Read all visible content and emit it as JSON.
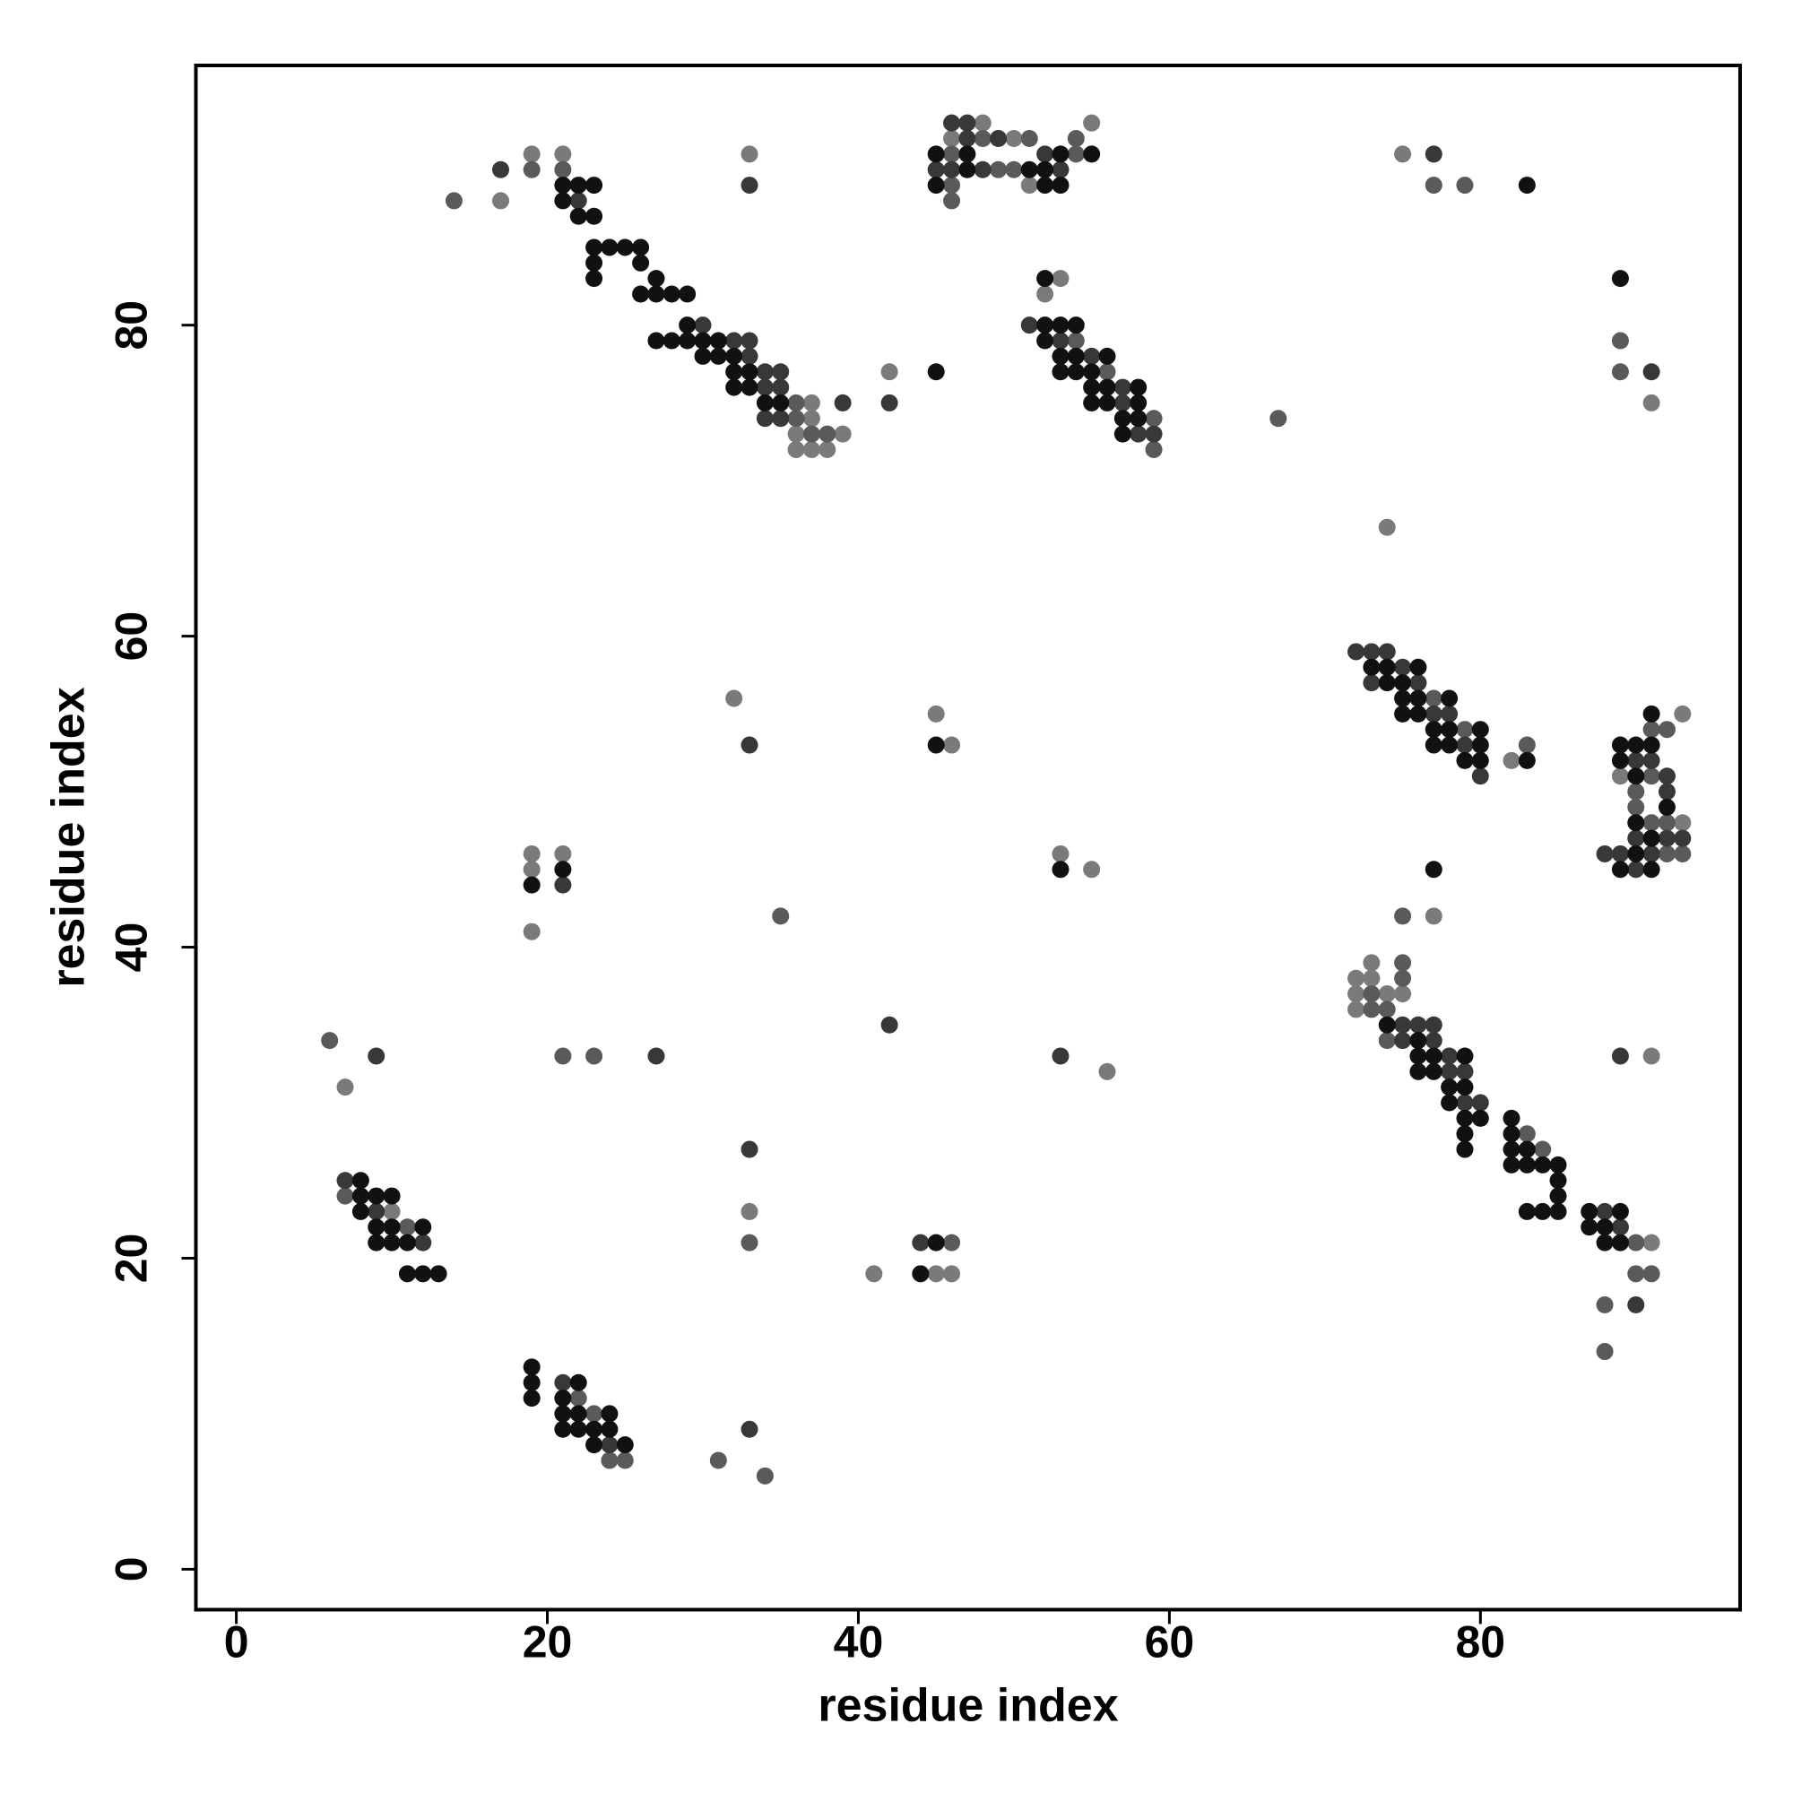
{
  "chart_data": {
    "type": "scatter",
    "xlabel": "residue index",
    "ylabel": "residue index",
    "xlim": [
      -2.6,
      96.7
    ],
    "ylim": [
      -2.6,
      96.7
    ],
    "xticks": [
      0,
      20,
      40,
      60,
      80
    ],
    "yticks": [
      0,
      20,
      40,
      60,
      80
    ],
    "series": [
      {
        "color": "#7a7a7a",
        "x": [
          17,
          19,
          21,
          36,
          36,
          37,
          37,
          37,
          38,
          39,
          33,
          42,
          46,
          48,
          50,
          51,
          55,
          52,
          53,
          75,
          91,
          74,
          82,
          89,
          93,
          93,
          32,
          45,
          46,
          19,
          19,
          21,
          19,
          53,
          55,
          77,
          72,
          72,
          72,
          73,
          73,
          74,
          75,
          91,
          91,
          7,
          56,
          10,
          33,
          45,
          46,
          41
        ],
        "values": [
          88,
          91,
          91,
          73,
          72,
          75,
          74,
          72,
          72,
          73,
          91,
          77,
          92,
          93,
          92,
          89,
          93,
          82,
          83,
          91,
          75,
          67,
          52,
          51,
          55,
          48,
          56,
          55,
          53,
          46,
          45,
          46,
          41,
          46,
          45,
          42,
          38,
          37,
          36,
          39,
          38,
          37,
          37,
          21,
          33,
          31,
          32,
          23,
          23,
          19,
          19,
          19
        ]
      },
      {
        "color": "#5a5a5a",
        "x": [
          14,
          19,
          21,
          36,
          36,
          37,
          38,
          46,
          46,
          46,
          48,
          49,
          50,
          51,
          54,
          54,
          54,
          56,
          59,
          59,
          67,
          77,
          79,
          89,
          89,
          77,
          79,
          83,
          90,
          90,
          91,
          91,
          91,
          92,
          92,
          92,
          93,
          35,
          75,
          73,
          73,
          74,
          74,
          75,
          75,
          83,
          84,
          90,
          90,
          91,
          88,
          88,
          6,
          21,
          23,
          7,
          11,
          33,
          46,
          22,
          23,
          24,
          25,
          31,
          34
        ],
        "values": [
          88,
          90,
          90,
          75,
          74,
          73,
          73,
          91,
          89,
          88,
          92,
          90,
          90,
          92,
          92,
          91,
          79,
          77,
          74,
          72,
          74,
          89,
          89,
          79,
          77,
          56,
          54,
          53,
          50,
          49,
          54,
          51,
          48,
          54,
          48,
          46,
          46,
          42,
          42,
          37,
          36,
          36,
          34,
          39,
          38,
          28,
          27,
          21,
          19,
          19,
          17,
          14,
          34,
          33,
          33,
          24,
          22,
          21,
          21,
          11,
          10,
          7,
          7,
          7,
          6
        ]
      },
      {
        "color": "#383838",
        "x": [
          17,
          22,
          30,
          32,
          33,
          33,
          34,
          34,
          34,
          35,
          35,
          35,
          39,
          33,
          42,
          45,
          46,
          46,
          47,
          47,
          48,
          49,
          52,
          53,
          51,
          53,
          55,
          57,
          57,
          58,
          59,
          77,
          91,
          72,
          73,
          73,
          74,
          75,
          76,
          77,
          78,
          79,
          80,
          88,
          89,
          90,
          90,
          90,
          91,
          91,
          92,
          92,
          92,
          93,
          33,
          21,
          75,
          75,
          76,
          77,
          77,
          78,
          78,
          79,
          79,
          80,
          88,
          89,
          90,
          89,
          9,
          27,
          42,
          53,
          7,
          9,
          12,
          33,
          44,
          21,
          24,
          33
        ],
        "values": [
          90,
          88,
          80,
          79,
          79,
          78,
          77,
          76,
          74,
          77,
          76,
          74,
          75,
          89,
          75,
          90,
          93,
          90,
          93,
          92,
          90,
          92,
          91,
          90,
          80,
          79,
          78,
          76,
          75,
          73,
          73,
          91,
          77,
          59,
          59,
          57,
          59,
          58,
          57,
          55,
          55,
          53,
          51,
          46,
          46,
          52,
          47,
          45,
          52,
          46,
          51,
          50,
          47,
          47,
          53,
          44,
          35,
          34,
          35,
          35,
          34,
          33,
          32,
          32,
          30,
          30,
          23,
          22,
          17,
          33,
          33,
          33,
          35,
          33,
          25,
          23,
          21,
          27,
          21,
          12,
          8,
          9
        ]
      },
      {
        "color": "#111111",
        "x": [
          21,
          21,
          22,
          22,
          23,
          23,
          23,
          23,
          23,
          24,
          25,
          26,
          26,
          26,
          27,
          27,
          28,
          29,
          27,
          28,
          29,
          29,
          30,
          30,
          31,
          31,
          32,
          32,
          32,
          33,
          33,
          34,
          35,
          45,
          45,
          45,
          47,
          47,
          51,
          52,
          52,
          53,
          53,
          55,
          52,
          52,
          52,
          53,
          53,
          53,
          54,
          54,
          54,
          55,
          55,
          55,
          56,
          56,
          56,
          57,
          57,
          58,
          58,
          58,
          83,
          89,
          73,
          74,
          74,
          75,
          75,
          75,
          76,
          76,
          76,
          77,
          77,
          78,
          78,
          78,
          79,
          80,
          80,
          80,
          83,
          89,
          89,
          89,
          90,
          90,
          90,
          90,
          91,
          91,
          91,
          91,
          92,
          45,
          19,
          21,
          53,
          77,
          74,
          76,
          76,
          76,
          77,
          77,
          78,
          78,
          79,
          79,
          79,
          79,
          79,
          80,
          82,
          82,
          82,
          82,
          83,
          83,
          83,
          84,
          84,
          85,
          85,
          85,
          85,
          87,
          87,
          88,
          88,
          89,
          89,
          8,
          8,
          8,
          9,
          9,
          9,
          10,
          10,
          10,
          11,
          11,
          12,
          12,
          13,
          44,
          45,
          19,
          19,
          19,
          21,
          21,
          21,
          22,
          22,
          22,
          23,
          23,
          24,
          24,
          25
        ],
        "values": [
          89,
          88,
          89,
          87,
          89,
          87,
          85,
          84,
          83,
          85,
          85,
          85,
          84,
          82,
          83,
          82,
          82,
          82,
          79,
          79,
          80,
          79,
          79,
          78,
          79,
          78,
          78,
          77,
          76,
          77,
          76,
          75,
          75,
          77,
          91,
          89,
          91,
          90,
          90,
          90,
          89,
          91,
          89,
          91,
          83,
          80,
          79,
          80,
          78,
          77,
          80,
          78,
          77,
          77,
          76,
          75,
          78,
          76,
          75,
          74,
          73,
          76,
          75,
          74,
          89,
          83,
          58,
          58,
          57,
          57,
          56,
          55,
          58,
          56,
          55,
          54,
          53,
          56,
          54,
          53,
          52,
          54,
          53,
          52,
          52,
          53,
          52,
          45,
          53,
          51,
          48,
          46,
          55,
          53,
          47,
          45,
          49,
          53,
          44,
          45,
          45,
          45,
          35,
          34,
          33,
          32,
          33,
          32,
          31,
          30,
          33,
          31,
          29,
          28,
          27,
          29,
          29,
          28,
          27,
          26,
          27,
          26,
          23,
          26,
          23,
          26,
          25,
          24,
          23,
          23,
          22,
          22,
          21,
          23,
          21,
          25,
          24,
          23,
          24,
          22,
          21,
          24,
          22,
          21,
          21,
          19,
          22,
          19,
          19,
          19,
          21,
          13,
          12,
          11,
          11,
          10,
          9,
          12,
          10,
          9,
          9,
          8,
          10,
          9,
          8
        ]
      }
    ]
  }
}
